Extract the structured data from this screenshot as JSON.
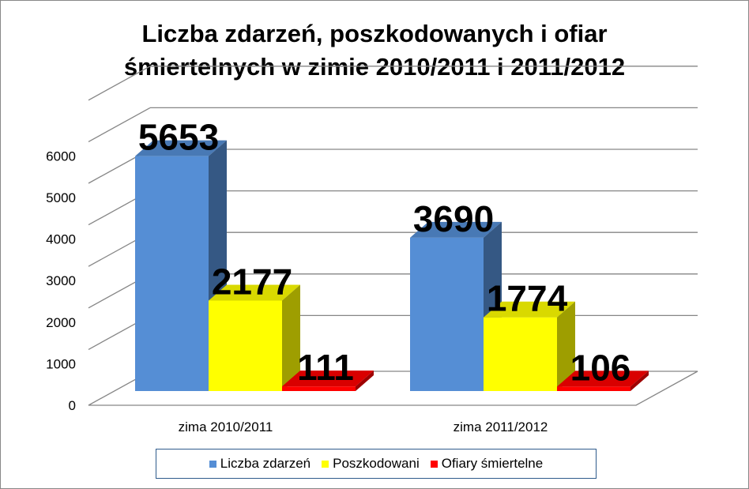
{
  "chart_data": {
    "type": "bar",
    "title_lines": [
      "Liczba zdarzeń, poszkodowanych i ofiar",
      "śmiertelnych w zimie 2010/2011 i 2011/2012"
    ],
    "categories": [
      "zima 2010/2011",
      "zima 2011/2012"
    ],
    "series": [
      {
        "name": "Liczba zdarzeń",
        "values": [
          5653,
          3690
        ],
        "color": "#558ed5"
      },
      {
        "name": "Poszkodowani",
        "values": [
          2177,
          1774
        ],
        "color": "#ffff00"
      },
      {
        "name": "Ofiary śmiertelne",
        "values": [
          111,
          106
        ],
        "color": "#ff0000"
      }
    ],
    "data_labels": [
      "5653",
      "3690",
      "2177",
      "1774",
      "111",
      "106"
    ],
    "y_ticks": [
      "0",
      "1000",
      "2000",
      "3000",
      "4000",
      "5000",
      "6000"
    ],
    "ylim": [
      0,
      6000
    ],
    "grid": true,
    "style": "3d-clustered-column",
    "legend_position": "bottom"
  }
}
